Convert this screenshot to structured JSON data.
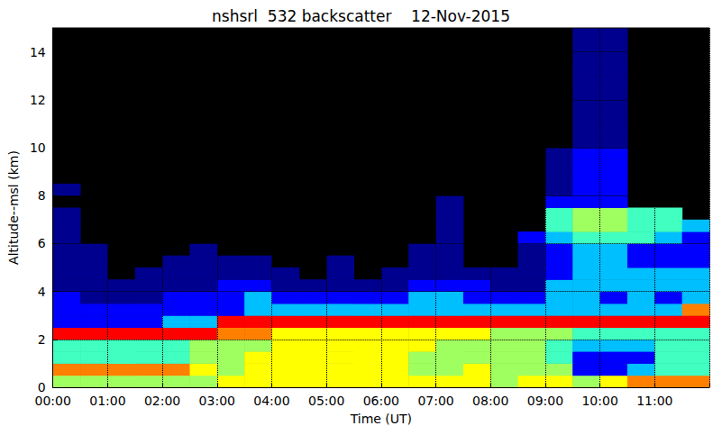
{
  "chart_data": {
    "type": "heatmap",
    "title": "nshsrl  532 backscatter    12-Nov-2015",
    "x_label": "Time (UT)",
    "y_label": "Altitude--msl (km)",
    "xlim": [
      0,
      12
    ],
    "ylim": [
      0,
      15
    ],
    "xticks": [
      {
        "value": 0,
        "label": "00:00"
      },
      {
        "value": 1,
        "label": "01:00"
      },
      {
        "value": 2,
        "label": "02:00"
      },
      {
        "value": 3,
        "label": "03:00"
      },
      {
        "value": 4,
        "label": "04:00"
      },
      {
        "value": 5,
        "label": "05:00"
      },
      {
        "value": 6,
        "label": "06:00"
      },
      {
        "value": 7,
        "label": "07:00"
      },
      {
        "value": 8,
        "label": "08:00"
      },
      {
        "value": 9,
        "label": "09:00"
      },
      {
        "value": 10,
        "label": "10:00"
      },
      {
        "value": 11,
        "label": "11:00"
      }
    ],
    "yticks": [
      0,
      2,
      4,
      6,
      8,
      10,
      12,
      14
    ],
    "grid": true,
    "x": [
      0,
      0.5,
      1,
      1.5,
      2,
      2.5,
      3,
      3.5,
      4,
      4.5,
      5,
      5.5,
      6,
      6.5,
      7,
      7.5,
      8,
      8.5,
      9,
      9.5,
      10,
      10.5,
      11,
      11.5,
      12
    ],
    "y": [
      0,
      0.5,
      1,
      1.5,
      2,
      2.5,
      3,
      3.5,
      4,
      4.5,
      5,
      5.5,
      6,
      6.5,
      7,
      7.5,
      8,
      8.5,
      9,
      9.5,
      10,
      10.5,
      11,
      11.5,
      12,
      12.5,
      13,
      13.5,
      14,
      14.5,
      15
    ],
    "zlim": [
      1,
      9
    ],
    "colors": [
      "#00008f",
      "#0000ff",
      "#00bfff",
      "#40ffc0",
      "#a0ff60",
      "#ffff00",
      "#ff8000",
      "#ff0000",
      "#800000"
    ],
    "z": [
      [
        5,
        5,
        5,
        5,
        5,
        5,
        6,
        6,
        6,
        6,
        6,
        6,
        6,
        6,
        6,
        6,
        5,
        6,
        6,
        5,
        6,
        7,
        7,
        7
      ],
      [
        7,
        7,
        7,
        7,
        7,
        6,
        5,
        6,
        6,
        6,
        6,
        6,
        6,
        5,
        5,
        6,
        5,
        5,
        5,
        2,
        2,
        3,
        4,
        4
      ],
      [
        4,
        4,
        4,
        4,
        4,
        5,
        5,
        6,
        6,
        6,
        6,
        6,
        6,
        5,
        5,
        5,
        5,
        5,
        4,
        2,
        2,
        2,
        4,
        4
      ],
      [
        4,
        4,
        4,
        4,
        4,
        5,
        5,
        5,
        6,
        6,
        6,
        6,
        6,
        6,
        5,
        5,
        5,
        5,
        4,
        3,
        3,
        3,
        4,
        4
      ],
      [
        8,
        8,
        8,
        8,
        8,
        8,
        7,
        7,
        6,
        6,
        6,
        6,
        6,
        6,
        6,
        6,
        5,
        5,
        5,
        4,
        4,
        4,
        4,
        4
      ],
      [
        2,
        2,
        2,
        2,
        3,
        3,
        8,
        8,
        8,
        8,
        8,
        8,
        8,
        8,
        8,
        8,
        8,
        8,
        8,
        8,
        8,
        8,
        8,
        8
      ],
      [
        2,
        2,
        2,
        2,
        2,
        2,
        2,
        3,
        3,
        3,
        3,
        3,
        3,
        3,
        3,
        3,
        3,
        3,
        3,
        3,
        3,
        3,
        3,
        7
      ],
      [
        2,
        1,
        1,
        1,
        2,
        2,
        2,
        3,
        2,
        2,
        2,
        2,
        2,
        3,
        3,
        2,
        2,
        2,
        3,
        3,
        2,
        3,
        2,
        3
      ],
      [
        1,
        1,
        1,
        1,
        1,
        1,
        2,
        2,
        1,
        1,
        1,
        1,
        1,
        2,
        2,
        2,
        1,
        1,
        3,
        3,
        3,
        3,
        3,
        3
      ],
      [
        1,
        1,
        null,
        1,
        1,
        1,
        1,
        1,
        1,
        null,
        1,
        null,
        1,
        1,
        1,
        1,
        1,
        1,
        2,
        3,
        3,
        3,
        3,
        3
      ],
      [
        1,
        1,
        null,
        null,
        1,
        1,
        1,
        1,
        null,
        null,
        1,
        null,
        null,
        1,
        1,
        null,
        null,
        1,
        2,
        3,
        3,
        2,
        2,
        2
      ],
      [
        1,
        1,
        null,
        null,
        null,
        1,
        null,
        null,
        null,
        null,
        null,
        null,
        null,
        1,
        1,
        null,
        null,
        1,
        2,
        3,
        3,
        2,
        2,
        2
      ],
      [
        1,
        null,
        null,
        null,
        null,
        null,
        null,
        null,
        null,
        null,
        null,
        null,
        null,
        null,
        1,
        null,
        null,
        2,
        3,
        4,
        4,
        4,
        3,
        2
      ],
      [
        1,
        null,
        null,
        null,
        null,
        null,
        null,
        null,
        null,
        null,
        null,
        null,
        null,
        null,
        1,
        null,
        null,
        null,
        4,
        5,
        5,
        4,
        4,
        3
      ],
      [
        1,
        null,
        null,
        null,
        null,
        null,
        null,
        null,
        null,
        null,
        null,
        null,
        null,
        null,
        1,
        null,
        null,
        null,
        4,
        5,
        5,
        4,
        4,
        null
      ],
      [
        null,
        null,
        null,
        null,
        null,
        null,
        null,
        null,
        null,
        null,
        null,
        null,
        null,
        null,
        1,
        null,
        null,
        null,
        2,
        2,
        2,
        null,
        null,
        null
      ],
      [
        1,
        null,
        null,
        null,
        null,
        null,
        null,
        null,
        null,
        null,
        null,
        null,
        null,
        null,
        null,
        null,
        null,
        null,
        1,
        2,
        2,
        null,
        null,
        null
      ],
      [
        null,
        null,
        null,
        null,
        null,
        null,
        null,
        null,
        null,
        null,
        null,
        null,
        null,
        null,
        null,
        null,
        null,
        null,
        1,
        2,
        2,
        null,
        null,
        null
      ],
      [
        null,
        null,
        null,
        null,
        null,
        null,
        null,
        null,
        null,
        null,
        null,
        null,
        null,
        null,
        null,
        null,
        null,
        null,
        1,
        2,
        2,
        null,
        null,
        null
      ],
      [
        null,
        null,
        null,
        null,
        null,
        null,
        null,
        null,
        null,
        null,
        null,
        null,
        null,
        null,
        null,
        null,
        null,
        null,
        1,
        2,
        2,
        null,
        null,
        null
      ],
      [
        null,
        null,
        null,
        null,
        null,
        null,
        null,
        null,
        null,
        null,
        null,
        null,
        null,
        null,
        null,
        null,
        null,
        null,
        null,
        1,
        1,
        null,
        null,
        null
      ],
      [
        null,
        null,
        null,
        null,
        null,
        null,
        null,
        null,
        null,
        null,
        null,
        null,
        null,
        null,
        null,
        null,
        null,
        null,
        null,
        1,
        1,
        null,
        null,
        null
      ],
      [
        null,
        null,
        null,
        null,
        null,
        null,
        null,
        null,
        null,
        null,
        null,
        null,
        null,
        null,
        null,
        null,
        null,
        null,
        null,
        1,
        1,
        null,
        null,
        null
      ],
      [
        null,
        null,
        null,
        null,
        null,
        null,
        null,
        null,
        null,
        null,
        null,
        null,
        null,
        null,
        null,
        null,
        null,
        null,
        null,
        1,
        1,
        null,
        null,
        null
      ],
      [
        null,
        null,
        null,
        null,
        null,
        null,
        null,
        null,
        null,
        null,
        null,
        null,
        null,
        null,
        null,
        null,
        null,
        null,
        null,
        1,
        1,
        null,
        null,
        null
      ],
      [
        null,
        null,
        null,
        null,
        null,
        null,
        null,
        null,
        null,
        null,
        null,
        null,
        null,
        null,
        null,
        null,
        null,
        null,
        null,
        1,
        1,
        null,
        null,
        null
      ],
      [
        null,
        null,
        null,
        null,
        null,
        null,
        null,
        null,
        null,
        null,
        null,
        null,
        null,
        null,
        null,
        null,
        null,
        null,
        null,
        1,
        1,
        null,
        null,
        null
      ],
      [
        null,
        null,
        null,
        null,
        null,
        null,
        null,
        null,
        null,
        null,
        null,
        null,
        null,
        null,
        null,
        null,
        null,
        null,
        null,
        1,
        1,
        null,
        null,
        null
      ],
      [
        null,
        null,
        null,
        null,
        null,
        null,
        null,
        null,
        null,
        null,
        null,
        null,
        null,
        null,
        null,
        null,
        null,
        null,
        null,
        1,
        1,
        null,
        null,
        null
      ],
      [
        null,
        null,
        null,
        null,
        null,
        null,
        null,
        null,
        null,
        null,
        null,
        null,
        null,
        null,
        null,
        null,
        null,
        null,
        null,
        1,
        1,
        null,
        null,
        null
      ]
    ]
  }
}
